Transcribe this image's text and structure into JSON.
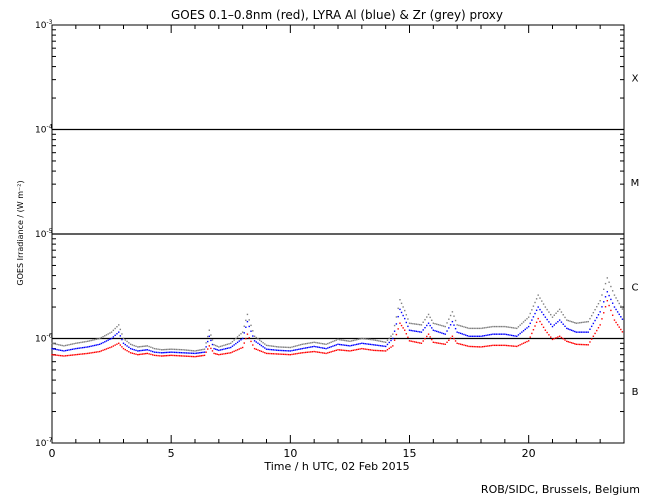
{
  "chart_data": {
    "type": "line",
    "title": "GOES 0.1–0.8nm (red), LYRA Al (blue) & Zr (grey) proxy",
    "xlabel": "Time / h UTC, 02 Feb 2015",
    "ylabel": "GOES Irradiance / (W m⁻²)",
    "xlim": [
      0,
      24
    ],
    "ylim": [
      1e-07,
      0.001
    ],
    "yscale": "log",
    "x_ticks": [
      0,
      5,
      10,
      15,
      20
    ],
    "y_ticks": [
      {
        "value": 1e-07,
        "base": "10",
        "exp": "-7"
      },
      {
        "value": 1e-06,
        "base": "10",
        "exp": "-6"
      },
      {
        "value": 1e-05,
        "base": "10",
        "exp": "-5"
      },
      {
        "value": 0.0001,
        "base": "10",
        "exp": "-4"
      },
      {
        "value": 0.001,
        "base": "10",
        "exp": "-3"
      }
    ],
    "threshold_lines": [
      1e-06,
      1e-05,
      0.0001
    ],
    "flare_classes": [
      {
        "label": "X",
        "value": 0.000316
      },
      {
        "label": "M",
        "value": 3.16e-05
      },
      {
        "label": "C",
        "value": 3.16e-06
      },
      {
        "label": "B",
        "value": 3.16e-07
      }
    ],
    "grid": false,
    "colors": {
      "red": "#ff0000",
      "blue": "#0000ff",
      "grey": "#808080"
    },
    "series": [
      {
        "color": "red",
        "x": [
          0,
          0.5,
          1,
          1.5,
          2,
          2.5,
          2.8,
          3.0,
          3.3,
          3.6,
          4,
          4.3,
          4.6,
          5,
          5.5,
          6,
          6.4,
          6.6,
          6.8,
          7,
          7.5,
          8,
          8.2,
          8.5,
          9,
          9.5,
          10,
          10.5,
          11,
          11.5,
          12,
          12.5,
          13,
          13.5,
          14,
          14.3,
          14.6,
          14.8,
          15,
          15.5,
          15.8,
          16,
          16.5,
          16.8,
          17,
          17.5,
          18,
          18.5,
          19,
          19.5,
          20,
          20.4,
          20.7,
          21,
          21.3,
          21.6,
          22,
          22.5,
          23,
          23.3,
          23.6,
          24
        ],
        "y": [
          7e-07,
          6.8e-07,
          7e-07,
          7.2e-07,
          7.5e-07,
          8.3e-07,
          9e-07,
          8e-07,
          7.3e-07,
          7e-07,
          7.2e-07,
          6.9e-07,
          6.8e-07,
          6.9e-07,
          6.8e-07,
          6.7e-07,
          6.9e-07,
          8.5e-07,
          7.2e-07,
          7e-07,
          7.3e-07,
          8.2e-07,
          1.1e-06,
          8e-07,
          7.2e-07,
          7.1e-07,
          7e-07,
          7.3e-07,
          7.5e-07,
          7.2e-07,
          7.8e-07,
          7.6e-07,
          8e-07,
          7.7e-07,
          7.6e-07,
          8.5e-07,
          1.4e-06,
          1.2e-06,
          9.5e-07,
          9e-07,
          1.1e-06,
          9.2e-07,
          8.8e-07,
          1.05e-06,
          9e-07,
          8.4e-07,
          8.3e-07,
          8.6e-07,
          8.6e-07,
          8.4e-07,
          9.5e-07,
          1.55e-06,
          1.2e-06,
          9.8e-07,
          1.05e-06,
          9.4e-07,
          8.8e-07,
          8.7e-07,
          1.35e-06,
          2.3e-06,
          1.5e-06,
          1.1e-06
        ]
      },
      {
        "color": "blue",
        "x": [
          0,
          0.5,
          1,
          1.5,
          2,
          2.5,
          2.8,
          3.0,
          3.3,
          3.6,
          4,
          4.3,
          4.6,
          5,
          5.5,
          6,
          6.4,
          6.6,
          6.8,
          7,
          7.5,
          8,
          8.2,
          8.5,
          9,
          9.5,
          10,
          10.5,
          11,
          11.5,
          12,
          12.5,
          13,
          13.5,
          14,
          14.3,
          14.6,
          14.8,
          15,
          15.5,
          15.8,
          16,
          16.5,
          16.8,
          17,
          17.5,
          18,
          18.5,
          19,
          19.5,
          20,
          20.4,
          20.7,
          21,
          21.3,
          21.6,
          22,
          22.5,
          23,
          23.3,
          23.6,
          24
        ],
        "y": [
          8e-07,
          7.6e-07,
          8e-07,
          8.3e-07,
          8.8e-07,
          1e-06,
          1.15e-06,
          9e-07,
          8e-07,
          7.6e-07,
          7.8e-07,
          7.4e-07,
          7.3e-07,
          7.4e-07,
          7.3e-07,
          7.2e-07,
          7.4e-07,
          1.05e-06,
          8e-07,
          7.7e-07,
          8.2e-07,
          1e-06,
          1.45e-06,
          9.5e-07,
          7.9e-07,
          7.7e-07,
          7.6e-07,
          8e-07,
          8.4e-07,
          8e-07,
          8.8e-07,
          8.5e-07,
          9e-07,
          8.7e-07,
          8.4e-07,
          1e-06,
          1.9e-06,
          1.55e-06,
          1.2e-06,
          1.15e-06,
          1.4e-06,
          1.2e-06,
          1.1e-06,
          1.45e-06,
          1.15e-06,
          1.05e-06,
          1.05e-06,
          1.1e-06,
          1.1e-06,
          1.05e-06,
          1.3e-06,
          2e-06,
          1.6e-06,
          1.3e-06,
          1.5e-06,
          1.25e-06,
          1.15e-06,
          1.15e-06,
          1.8e-06,
          2.8e-06,
          2e-06,
          1.45e-06
        ]
      },
      {
        "color": "grey",
        "x": [
          0,
          0.5,
          1,
          1.5,
          2,
          2.5,
          2.8,
          3.0,
          3.3,
          3.6,
          4,
          4.3,
          4.6,
          5,
          5.5,
          6,
          6.4,
          6.6,
          6.8,
          7,
          7.5,
          8,
          8.2,
          8.5,
          9,
          9.5,
          10,
          10.5,
          11,
          11.5,
          12,
          12.5,
          13,
          13.5,
          14,
          14.3,
          14.6,
          14.8,
          15,
          15.5,
          15.8,
          16,
          16.5,
          16.8,
          17,
          17.5,
          18,
          18.5,
          19,
          19.5,
          20,
          20.4,
          20.7,
          21,
          21.3,
          21.6,
          22,
          22.5,
          23,
          23.3,
          23.6,
          24
        ],
        "y": [
          9e-07,
          8.5e-07,
          9e-07,
          9.4e-07,
          1e-06,
          1.15e-06,
          1.35e-06,
          1e-06,
          8.8e-07,
          8.3e-07,
          8.5e-07,
          8e-07,
          7.8e-07,
          7.9e-07,
          7.8e-07,
          7.6e-07,
          7.9e-07,
          1.2e-06,
          8.7e-07,
          8.3e-07,
          9e-07,
          1.15e-06,
          1.7e-06,
          1.05e-06,
          8.6e-07,
          8.3e-07,
          8.2e-07,
          8.8e-07,
          9.2e-07,
          8.8e-07,
          9.8e-07,
          9.4e-07,
          1e-06,
          9.7e-07,
          9.2e-07,
          1.1e-06,
          2.35e-06,
          1.85e-06,
          1.4e-06,
          1.35e-06,
          1.7e-06,
          1.4e-06,
          1.3e-06,
          1.8e-06,
          1.35e-06,
          1.25e-06,
          1.25e-06,
          1.3e-06,
          1.3e-06,
          1.25e-06,
          1.6e-06,
          2.6e-06,
          2e-06,
          1.6e-06,
          1.9e-06,
          1.5e-06,
          1.4e-06,
          1.45e-06,
          2.3e-06,
          3.8e-06,
          2.6e-06,
          1.8e-06
        ]
      }
    ]
  },
  "credit": "ROB/SIDC, Brussels, Belgium"
}
